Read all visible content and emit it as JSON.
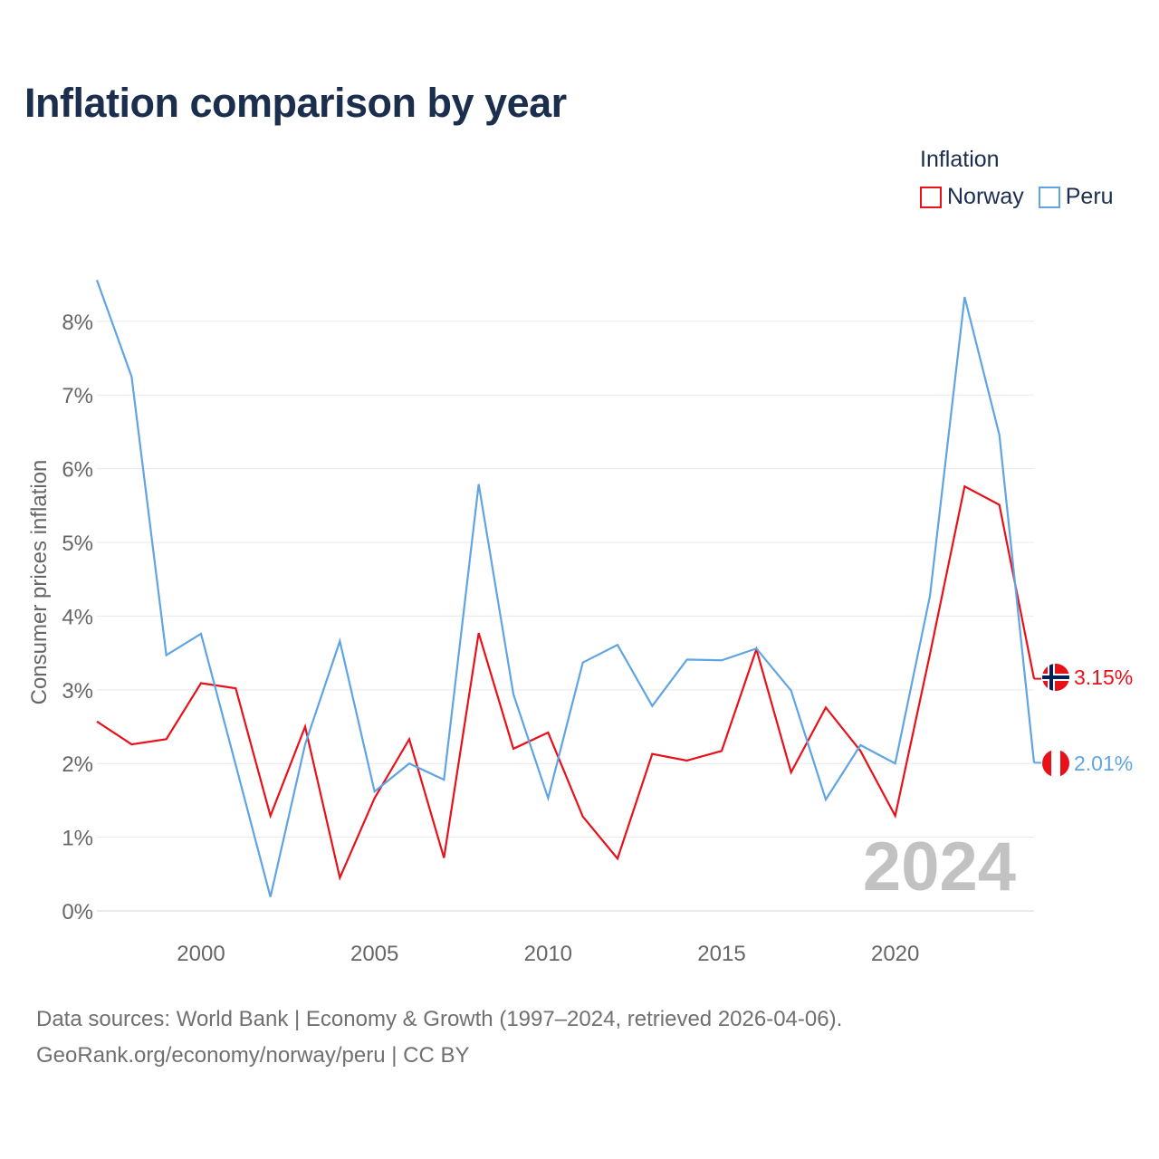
{
  "title": "Inflation comparison by year",
  "legend": {
    "title": "Inflation",
    "items": [
      {
        "label": "Norway",
        "color": "#e8111a"
      },
      {
        "label": "Peru",
        "color": "#5fa4e3"
      }
    ]
  },
  "watermark_year": "2024",
  "footer": {
    "line1": "Data sources: World Bank | Economy & Growth (1997–2024, retrieved 2026-04-06).",
    "line2": "GeoRank.org/economy/norway/peru | CC BY"
  },
  "chart_data": {
    "type": "line",
    "title": "Inflation comparison by year",
    "xlabel": "",
    "ylabel": "Consumer prices inflation",
    "x": [
      1997,
      1998,
      1999,
      2000,
      2001,
      2002,
      2003,
      2004,
      2005,
      2006,
      2007,
      2008,
      2009,
      2010,
      2011,
      2012,
      2013,
      2014,
      2015,
      2016,
      2017,
      2018,
      2019,
      2020,
      2021,
      2022,
      2023,
      2024
    ],
    "xlim": [
      1997,
      2024
    ],
    "ylim": [
      0,
      8.6
    ],
    "x_ticks": [
      2000,
      2005,
      2010,
      2015,
      2020
    ],
    "y_ticks": [
      0,
      1,
      2,
      3,
      4,
      5,
      6,
      7,
      8
    ],
    "y_tick_labels": [
      "0%",
      "1%",
      "2%",
      "3%",
      "4%",
      "5%",
      "6%",
      "7%",
      "8%"
    ],
    "grid": true,
    "series": [
      {
        "name": "Norway",
        "color": "#e8111a",
        "values": [
          2.57,
          2.26,
          2.33,
          3.09,
          3.02,
          1.29,
          2.5,
          0.45,
          1.53,
          2.33,
          0.72,
          3.77,
          2.2,
          2.42,
          1.28,
          0.71,
          2.13,
          2.04,
          2.17,
          3.55,
          1.88,
          2.76,
          2.17,
          1.29,
          3.48,
          5.76,
          5.51,
          3.15
        ],
        "end_label": "3.15%"
      },
      {
        "name": "Peru",
        "color": "#5fa4e3",
        "values": [
          8.56,
          7.25,
          3.47,
          3.76,
          1.98,
          0.19,
          2.26,
          3.66,
          1.62,
          2.0,
          1.78,
          5.79,
          2.94,
          1.53,
          3.37,
          3.61,
          2.78,
          3.41,
          3.4,
          3.56,
          2.99,
          1.51,
          2.25,
          2.0,
          4.27,
          8.33,
          6.46,
          2.01
        ],
        "end_label": "2.01%"
      }
    ]
  }
}
